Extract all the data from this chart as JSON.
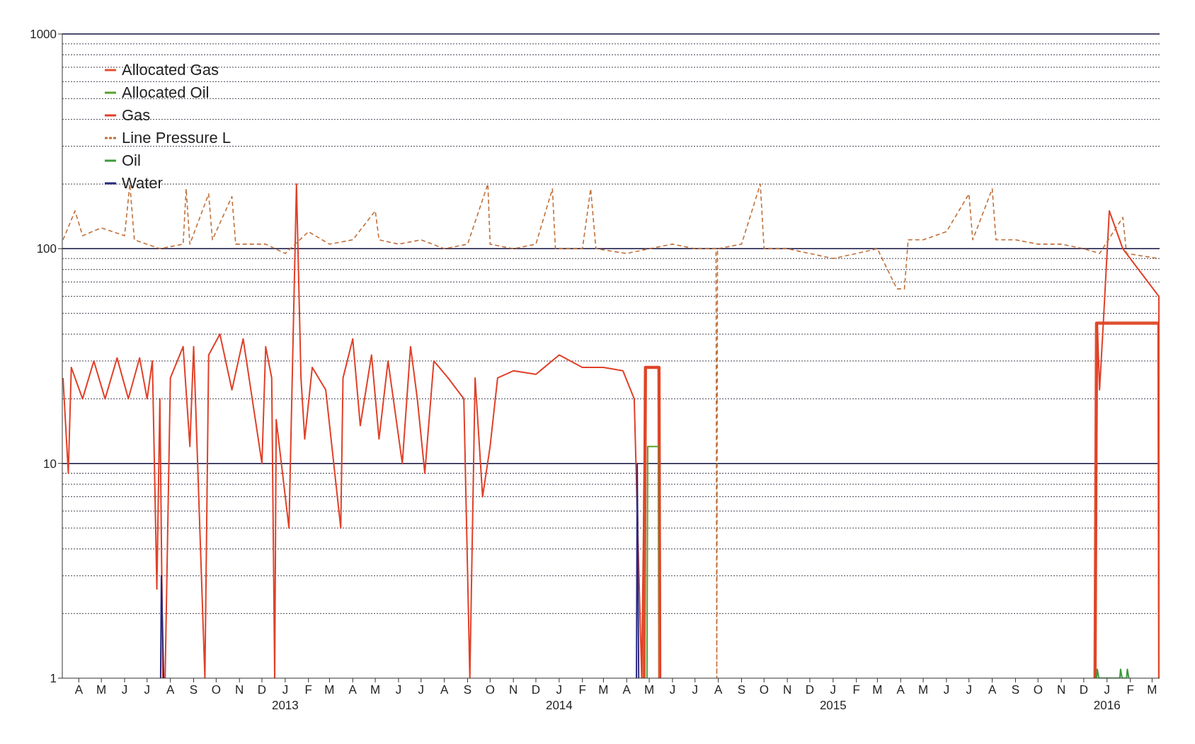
{
  "chart_data": {
    "type": "line",
    "log": "y",
    "grid": "y",
    "legend": "top left",
    "marker": "none",
    "xlim": [
      "2012-03-24",
      "2016-03-25"
    ],
    "ylim": [
      1,
      1000
    ],
    "yticks": [
      1,
      10,
      100,
      1000
    ],
    "xticks": [
      {
        "value": "2012-04-15",
        "label": "A"
      },
      {
        "value": "2012-05-15",
        "label": "M"
      },
      {
        "value": "2012-06-15",
        "label": "J"
      },
      {
        "value": "2012-07-15",
        "label": "J"
      },
      {
        "value": "2012-08-15",
        "label": "A"
      },
      {
        "value": "2012-09-15",
        "label": "S"
      },
      {
        "value": "2012-10-15",
        "label": "O"
      },
      {
        "value": "2012-11-15",
        "label": "N"
      },
      {
        "value": "2012-12-15",
        "label": "D"
      },
      {
        "value": "2013-01-15",
        "label": "J\n2013"
      },
      {
        "value": "2013-02-15",
        "label": "F"
      },
      {
        "value": "2013-03-15",
        "label": "M"
      },
      {
        "value": "2013-04-15",
        "label": "A"
      },
      {
        "value": "2013-05-15",
        "label": "M"
      },
      {
        "value": "2013-06-15",
        "label": "J"
      },
      {
        "value": "2013-07-15",
        "label": "J"
      },
      {
        "value": "2013-08-15",
        "label": "A"
      },
      {
        "value": "2013-09-15",
        "label": "S"
      },
      {
        "value": "2013-10-15",
        "label": "O"
      },
      {
        "value": "2013-11-15",
        "label": "N"
      },
      {
        "value": "2013-12-15",
        "label": "D"
      },
      {
        "value": "2014-01-15",
        "label": "J\n2014"
      },
      {
        "value": "2014-02-15",
        "label": "F"
      },
      {
        "value": "2014-03-15",
        "label": "M"
      },
      {
        "value": "2014-04-15",
        "label": "A"
      },
      {
        "value": "2014-05-15",
        "label": "M"
      },
      {
        "value": "2014-06-15",
        "label": "J"
      },
      {
        "value": "2014-07-15",
        "label": "J"
      },
      {
        "value": "2014-08-15",
        "label": "A"
      },
      {
        "value": "2014-09-15",
        "label": "S"
      },
      {
        "value": "2014-10-15",
        "label": "O"
      },
      {
        "value": "2014-11-15",
        "label": "N"
      },
      {
        "value": "2014-12-15",
        "label": "D"
      },
      {
        "value": "2015-01-15",
        "label": "J\n2015"
      },
      {
        "value": "2015-02-15",
        "label": "F"
      },
      {
        "value": "2015-03-15",
        "label": "M"
      },
      {
        "value": "2015-04-15",
        "label": "A"
      },
      {
        "value": "2015-05-15",
        "label": "M"
      },
      {
        "value": "2015-06-15",
        "label": "J"
      },
      {
        "value": "2015-07-15",
        "label": "J"
      },
      {
        "value": "2015-08-15",
        "label": "A"
      },
      {
        "value": "2015-09-15",
        "label": "S"
      },
      {
        "value": "2015-10-15",
        "label": "O"
      },
      {
        "value": "2015-11-15",
        "label": "N"
      },
      {
        "value": "2015-12-15",
        "label": "D"
      },
      {
        "value": "2016-01-15",
        "label": "J\n2016"
      },
      {
        "value": "2016-02-15",
        "label": "F"
      },
      {
        "value": "2016-03-15",
        "label": "M"
      }
    ],
    "series": [
      {
        "name": "Allocated Gas",
        "color": "#e05030",
        "line_style": "solid",
        "x": [
          "2014-05-08",
          "2014-05-10",
          "2014-05-28",
          "2014-05-29",
          "2015-06-01",
          "2015-12-30",
          "2016-01-01",
          "2016-03-24",
          "2016-03-25"
        ],
        "values": [
          1,
          28,
          28,
          1,
          null,
          1,
          45,
          45,
          1
        ]
      },
      {
        "name": "Allocated Oil",
        "color": "#5aa02c",
        "line_style": "solid",
        "x": [
          "2014-05-12",
          "2014-05-13",
          "2014-05-28",
          "2014-05-29"
        ],
        "values": [
          1,
          12,
          12,
          1
        ]
      },
      {
        "name": "Gas",
        "color": "#e04028",
        "line_style": "solid",
        "x": [
          "2012-03-25",
          "2012-04-01",
          "2012-04-05",
          "2012-04-20",
          "2012-05-05",
          "2012-05-20",
          "2012-06-05",
          "2012-06-20",
          "2012-07-05",
          "2012-07-15",
          "2012-07-22",
          "2012-07-28",
          "2012-08-01",
          "2012-08-05",
          "2012-08-08",
          "2012-08-15",
          "2012-09-01",
          "2012-09-10",
          "2012-09-15",
          "2012-09-30",
          "2012-10-05",
          "2012-10-20",
          "2012-11-05",
          "2012-11-20",
          "2012-12-15",
          "2012-12-20",
          "2012-12-28",
          "2013-01-01",
          "2013-01-03",
          "2013-01-20",
          "2013-01-30",
          "2013-02-05",
          "2013-02-10",
          "2013-02-20",
          "2013-03-10",
          "2013-03-30",
          "2013-04-02",
          "2013-04-15",
          "2013-04-25",
          "2013-05-10",
          "2013-05-20",
          "2013-06-01",
          "2013-06-20",
          "2013-07-01",
          "2013-07-10",
          "2013-07-20",
          "2013-08-01",
          "2013-08-20",
          "2013-09-10",
          "2013-09-18",
          "2013-09-25",
          "2013-10-05",
          "2013-10-15",
          "2013-10-25",
          "2013-11-15",
          "2013-12-15",
          "2014-01-15",
          "2014-02-15",
          "2014-03-15",
          "2014-04-10",
          "2014-04-25",
          "2014-05-05",
          "2014-05-10",
          "2014-05-28",
          "2014-05-30",
          "2015-06-01",
          "2015-12-30",
          "2016-01-02",
          "2016-01-05",
          "2016-01-10",
          "2016-01-18",
          "2016-02-05",
          "2016-03-24",
          "2016-03-25"
        ],
        "values": [
          25,
          9,
          28,
          20,
          30,
          20,
          31,
          20,
          31,
          20,
          30,
          2.6,
          20,
          1,
          1,
          25,
          35,
          12,
          35,
          1,
          32,
          40,
          22,
          38,
          10,
          35,
          25,
          1,
          16,
          5,
          200,
          25,
          13,
          28,
          22,
          5,
          25,
          38,
          15,
          32,
          13,
          30,
          10,
          35,
          20,
          9,
          30,
          25,
          20,
          1,
          25,
          7,
          12,
          25,
          27,
          26,
          32,
          28,
          28,
          27,
          20,
          1,
          28,
          28,
          1,
          null,
          1,
          45,
          22,
          45,
          150,
          100,
          60,
          1
        ]
      },
      {
        "name": "Line Pressure L",
        "color": "#c0703a",
        "line_style": "dashed",
        "x": [
          "2012-03-25",
          "2012-04-10",
          "2012-04-20",
          "2012-05-15",
          "2012-06-15",
          "2012-06-22",
          "2012-06-28",
          "2012-08-01",
          "2012-09-01",
          "2012-09-05",
          "2012-09-10",
          "2012-10-05",
          "2012-10-10",
          "2012-11-05",
          "2012-11-10",
          "2012-12-20",
          "2013-01-15",
          "2013-02-15",
          "2013-03-15",
          "2013-04-15",
          "2013-05-15",
          "2013-05-20",
          "2013-06-15",
          "2013-07-15",
          "2013-08-15",
          "2013-09-15",
          "2013-10-12",
          "2013-10-15",
          "2013-11-15",
          "2013-12-15",
          "2014-01-06",
          "2014-01-10",
          "2014-02-15",
          "2014-02-26",
          "2014-03-05",
          "2014-04-15",
          "2014-05-15",
          "2014-06-15",
          "2014-07-15",
          "2014-08-12",
          "2014-08-13",
          "2014-08-14",
          "2014-09-15",
          "2014-10-10",
          "2014-10-15",
          "2014-11-15",
          "2014-12-15",
          "2015-01-15",
          "2015-02-15",
          "2015-03-15",
          "2015-04-10",
          "2015-04-20",
          "2015-04-25",
          "2015-05-15",
          "2015-06-15",
          "2015-07-15",
          "2015-07-20",
          "2015-08-15",
          "2015-08-20",
          "2015-09-15",
          "2015-10-15",
          "2015-11-15",
          "2015-12-15",
          "2016-01-05",
          "2016-02-05",
          "2016-02-10",
          "2016-03-24"
        ],
        "values": [
          110,
          150,
          115,
          125,
          115,
          200,
          110,
          100,
          105,
          190,
          105,
          180,
          110,
          175,
          105,
          105,
          95,
          120,
          105,
          110,
          150,
          110,
          105,
          110,
          100,
          105,
          200,
          105,
          100,
          105,
          190,
          100,
          100,
          190,
          100,
          95,
          100,
          105,
          100,
          100,
          1,
          100,
          105,
          200,
          100,
          100,
          95,
          90,
          95,
          100,
          65,
          65,
          110,
          110,
          120,
          180,
          110,
          190,
          110,
          110,
          105,
          105,
          100,
          95,
          140,
          95,
          90
        ]
      },
      {
        "name": "Oil",
        "color": "#3c9a3c",
        "line_style": "solid",
        "x": [
          "2016-01-01",
          "2016-01-02",
          "2016-01-04",
          "2016-02-01",
          "2016-02-02",
          "2016-02-04",
          "2016-02-10",
          "2016-02-11",
          "2016-02-13"
        ],
        "values": [
          1,
          1.1,
          1,
          1,
          1.1,
          1,
          1,
          1.1,
          1
        ]
      },
      {
        "name": "Water",
        "color": "#2a2a80",
        "line_style": "solid",
        "x": [
          "2012-08-02",
          "2012-08-03",
          "2012-08-06",
          "2014-01-01",
          "2014-04-28",
          "2014-04-29",
          "2014-05-01"
        ],
        "values": [
          1,
          3,
          1,
          null,
          1,
          10,
          1
        ]
      }
    ]
  }
}
